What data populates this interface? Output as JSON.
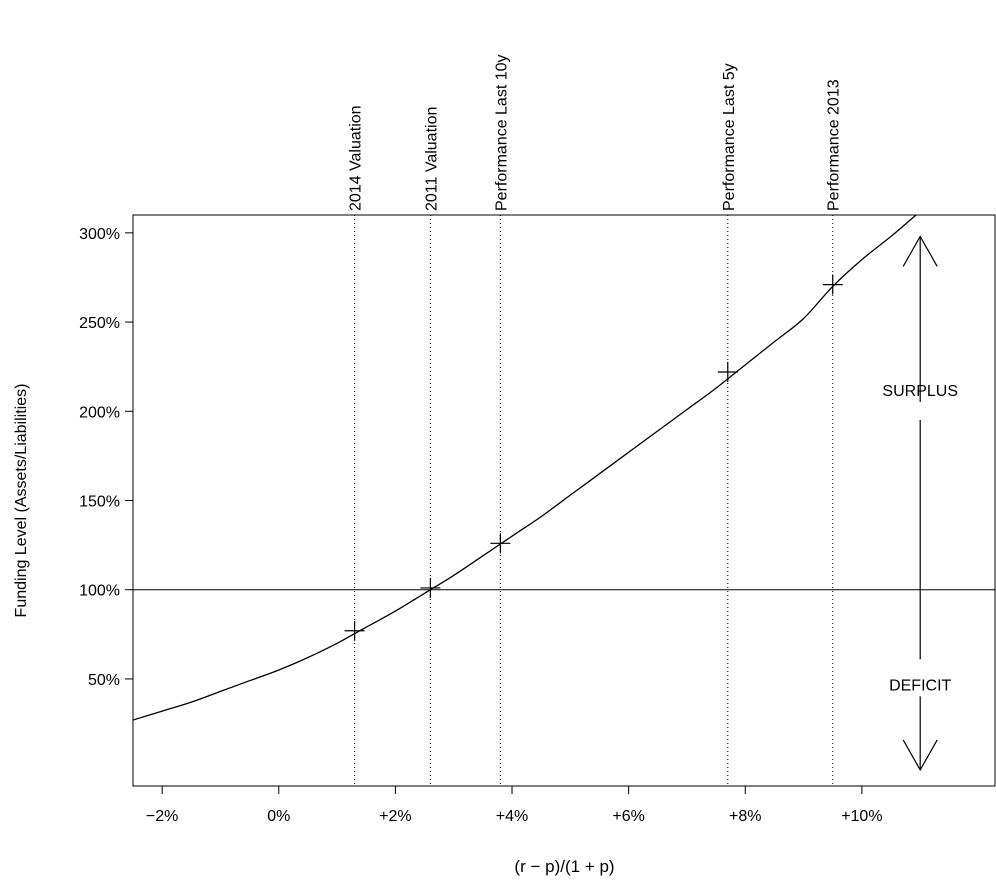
{
  "chart_data": {
    "type": "line",
    "title": "",
    "xlabel": "(r − p)/(1 + p)",
    "ylabel": "Funding Level (Assets/Liabilities)",
    "xlim": [
      -2.5,
      12.3
    ],
    "ylim": [
      -0.1,
      3.1
    ],
    "x_ticks": [
      {
        "value": -2,
        "label": "−2%"
      },
      {
        "value": 0,
        "label": "0%"
      },
      {
        "value": 2,
        "label": "+2%"
      },
      {
        "value": 4,
        "label": "+4%"
      },
      {
        "value": 6,
        "label": "+6%"
      },
      {
        "value": 8,
        "label": "+8%"
      },
      {
        "value": 10,
        "label": "+10%"
      }
    ],
    "y_ticks": [
      {
        "value": 0.5,
        "label": "50%"
      },
      {
        "value": 1.0,
        "label": "100%"
      },
      {
        "value": 1.5,
        "label": "150%"
      },
      {
        "value": 2.0,
        "label": "200%"
      },
      {
        "value": 2.5,
        "label": "250%"
      },
      {
        "value": 3.0,
        "label": "300%"
      }
    ],
    "curve": {
      "x": [
        -2.5,
        -2,
        -1.5,
        -1,
        -0.5,
        0,
        0.5,
        1,
        1.5,
        2,
        2.5,
        3,
        3.5,
        4,
        4.5,
        5,
        5.5,
        6,
        6.5,
        7,
        7.5,
        8,
        8.5,
        9,
        9.5,
        10,
        10.5,
        11
      ],
      "y": [
        0.27,
        0.32,
        0.37,
        0.43,
        0.49,
        0.55,
        0.62,
        0.7,
        0.79,
        0.88,
        0.98,
        1.08,
        1.19,
        1.3,
        1.41,
        1.53,
        1.65,
        1.77,
        1.89,
        2.01,
        2.13,
        2.26,
        2.39,
        2.52,
        2.7,
        2.85,
        2.98,
        3.12
      ]
    },
    "reference_line": {
      "y": 1.0
    },
    "markers": [
      {
        "label": "2014 Valuation",
        "x": 1.3,
        "y": 0.77
      },
      {
        "label": "2011 Valuation",
        "x": 2.6,
        "y": 1.01
      },
      {
        "label": "Performance Last 10y",
        "x": 3.8,
        "y": 1.26
      },
      {
        "label": "Performance Last 5y",
        "x": 7.7,
        "y": 2.22
      },
      {
        "label": "Performance 2013",
        "x": 9.5,
        "y": 2.71
      }
    ],
    "annotations": {
      "surplus": {
        "text": "SURPLUS",
        "x": 11.0,
        "y": 2.12
      },
      "deficit": {
        "text": "DEFICIT",
        "x": 11.0,
        "y": 0.47
      },
      "arrow_x": 11.0,
      "arrow_up": {
        "from": 1.0,
        "to": 2.98
      },
      "arrow_down": {
        "from": 1.0,
        "to": -0.01
      }
    },
    "grid": false,
    "legend": "none"
  }
}
